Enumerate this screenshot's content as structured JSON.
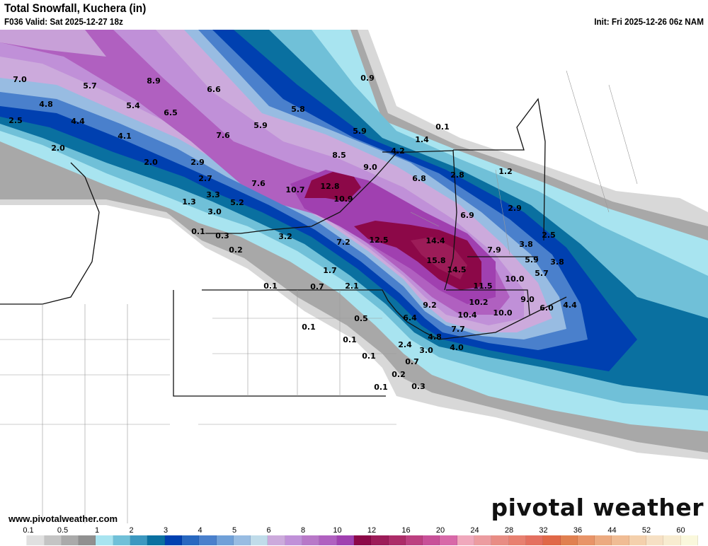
{
  "header": {
    "title": "Total Snowfall, Kuchera (in)",
    "valid": "F036 Valid: Sat 2025-12-27 18z",
    "init": "Init: Fri 2025-12-26 06z NAM"
  },
  "footer": {
    "url": "www.pivotalweather.com",
    "logo": "pivotal weather"
  },
  "legend": {
    "tick_labels": [
      "0.1",
      "0.5",
      "1",
      "2",
      "3",
      "4",
      "5",
      "6",
      "8",
      "10",
      "12",
      "16",
      "20",
      "24",
      "28",
      "32",
      "36",
      "44",
      "52",
      "60"
    ],
    "colors": [
      "#ffffff",
      "#e0e0e0",
      "#c4c4c4",
      "#aaaaaa",
      "#909090",
      "#a8e4f0",
      "#70c0d8",
      "#3c98c0",
      "#0a70a0",
      "#0040b0",
      "#2868c0",
      "#4a80cc",
      "#70a0d8",
      "#98bce2",
      "#c0dcea",
      "#ccaadc",
      "#c090d8",
      "#b878c8",
      "#b060c0",
      "#a040b0",
      "#8c0848",
      "#9c1c58",
      "#ac2c68",
      "#bc4080",
      "#c85098",
      "#d868a8",
      "#f0a8bc",
      "#ec9ca0",
      "#e88c84",
      "#e88070",
      "#e47060",
      "#e06848",
      "#e08050",
      "#e89468",
      "#ecaa80",
      "#f0bc94",
      "#f4d0ac",
      "#f6e0c4",
      "#f8ecd0",
      "#faf8dc"
    ]
  },
  "map": {
    "point_labels": [
      "7.0",
      "4.8",
      "5.7",
      "8.9",
      "6.6",
      "5.4",
      "6.5",
      "2.5",
      "4.4",
      "4.1",
      "7.6",
      "5.9",
      "5.8",
      "0.9",
      "2.0",
      "2.0",
      "2.9",
      "2.7",
      "3.3",
      "1.3",
      "3.0",
      "5.2",
      "7.6",
      "10.7",
      "12.8",
      "10.9",
      "8.5",
      "9.0",
      "5.9",
      "0.1",
      "1.4",
      "4.2",
      "6.8",
      "2.8",
      "1.2",
      "2.9",
      "6.9",
      "2.5",
      "3.8",
      "7.9",
      "5.9",
      "3.8",
      "5.7",
      "10.0",
      "14.4",
      "15.8",
      "14.5",
      "11.5",
      "12.5",
      "7.2",
      "3.2",
      "0.1",
      "0.3",
      "0.2",
      "1.7",
      "2.1",
      "0.7",
      "0.1",
      "9.2",
      "10.2",
      "10.4",
      "10.0",
      "9.0",
      "6.0",
      "4.4",
      "6.4",
      "0.5",
      "0.1",
      "0.1",
      "0.1",
      "7.7",
      "4.8",
      "2.4",
      "3.0",
      "4.0",
      "0.7",
      "0.2",
      "0.1",
      "0.3"
    ]
  }
}
